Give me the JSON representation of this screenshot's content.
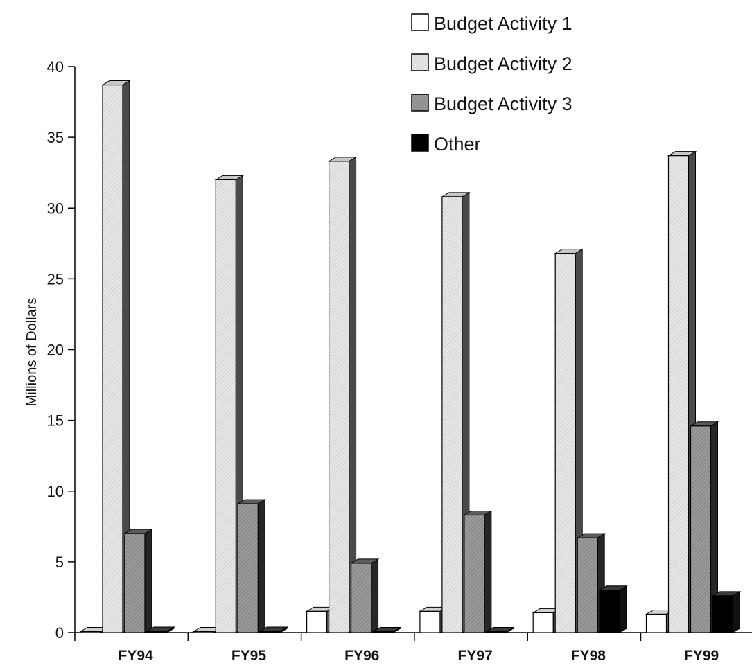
{
  "chart_data": {
    "type": "bar",
    "style": "3d-clustered-column",
    "title": "",
    "xlabel": "",
    "ylabel": "Millions of Dollars",
    "ylim": [
      0,
      40
    ],
    "yticks": [
      "0",
      "5",
      "10",
      "15",
      "20",
      "25",
      "30",
      "35",
      "40"
    ],
    "legend_position": "top-right",
    "grid": false,
    "categories": [
      "FY94",
      "FY95",
      "FY96",
      "FY97",
      "FY98",
      "FY99"
    ],
    "series": [
      {
        "name": "Budget Activity 1",
        "color": "#ffffff",
        "values": [
          0,
          0,
          1.5,
          1.5,
          1.4,
          1.3
        ]
      },
      {
        "name": "Budget Activity 2",
        "color": "#dcdcdc",
        "values": [
          38.7,
          32.0,
          33.3,
          30.8,
          26.8,
          33.7
        ]
      },
      {
        "name": "Budget Activity 3",
        "color": "#8c8c8c",
        "values": [
          7.0,
          9.1,
          4.9,
          8.3,
          6.7,
          14.6
        ]
      },
      {
        "name": "Other",
        "color": "#000000",
        "values": [
          0.1,
          0.1,
          0,
          0,
          3.0,
          2.6
        ]
      }
    ]
  }
}
